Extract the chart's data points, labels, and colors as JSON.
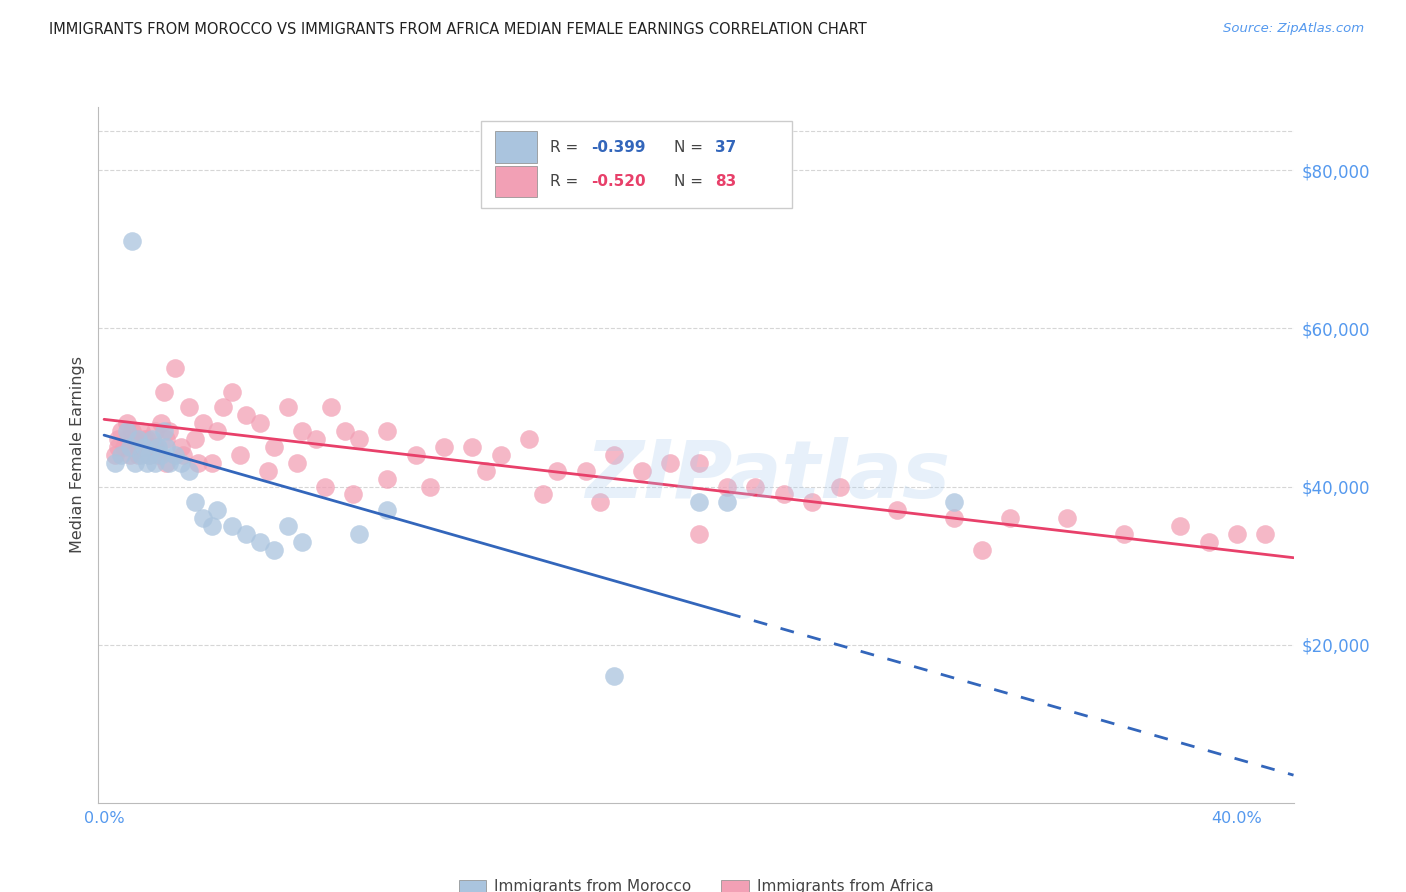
{
  "title": "IMMIGRANTS FROM MOROCCO VS IMMIGRANTS FROM AFRICA MEDIAN FEMALE EARNINGS CORRELATION CHART",
  "source": "Source: ZipAtlas.com",
  "ylabel": "Median Female Earnings",
  "xlabel_ticks": [
    "0.0%",
    "",
    "",
    "",
    "40.0%"
  ],
  "xlabel_vals": [
    0.0,
    0.1,
    0.2,
    0.3,
    0.4
  ],
  "ytick_labels": [
    "$20,000",
    "$40,000",
    "$60,000",
    "$80,000"
  ],
  "ytick_vals": [
    20000,
    40000,
    60000,
    80000
  ],
  "ylim": [
    0,
    88000
  ],
  "xlim": [
    -0.002,
    0.42
  ],
  "watermark": "ZIPatlas",
  "morocco_R": "-0.399",
  "morocco_N": "37",
  "africa_R": "-0.520",
  "africa_N": "83",
  "morocco_color": "#aac4de",
  "africa_color": "#f2a0b5",
  "morocco_line_color": "#3366bb",
  "africa_line_color": "#e8406a",
  "morocco_scatter_x": [
    0.004,
    0.006,
    0.008,
    0.009,
    0.01,
    0.011,
    0.012,
    0.013,
    0.014,
    0.015,
    0.016,
    0.017,
    0.018,
    0.019,
    0.02,
    0.021,
    0.022,
    0.023,
    0.025,
    0.027,
    0.03,
    0.032,
    0.035,
    0.038,
    0.04,
    0.045,
    0.05,
    0.055,
    0.06,
    0.065,
    0.07,
    0.09,
    0.1,
    0.18,
    0.21,
    0.22,
    0.3
  ],
  "morocco_scatter_y": [
    43000,
    44000,
    47000,
    45000,
    71000,
    43000,
    46000,
    44000,
    45000,
    43000,
    44000,
    46000,
    43000,
    45000,
    44000,
    47000,
    45000,
    43000,
    44000,
    43000,
    42000,
    38000,
    36000,
    35000,
    37000,
    35000,
    34000,
    33000,
    32000,
    35000,
    33000,
    34000,
    37000,
    16000,
    38000,
    38000,
    38000
  ],
  "africa_scatter_x": [
    0.004,
    0.005,
    0.006,
    0.007,
    0.008,
    0.009,
    0.01,
    0.011,
    0.012,
    0.013,
    0.014,
    0.015,
    0.016,
    0.017,
    0.018,
    0.019,
    0.02,
    0.021,
    0.022,
    0.023,
    0.025,
    0.027,
    0.03,
    0.032,
    0.035,
    0.04,
    0.042,
    0.045,
    0.05,
    0.055,
    0.06,
    0.065,
    0.07,
    0.075,
    0.08,
    0.085,
    0.09,
    0.1,
    0.11,
    0.12,
    0.13,
    0.14,
    0.15,
    0.16,
    0.17,
    0.18,
    0.19,
    0.2,
    0.21,
    0.22,
    0.23,
    0.24,
    0.25,
    0.26,
    0.28,
    0.3,
    0.32,
    0.34,
    0.36,
    0.38,
    0.39,
    0.4,
    0.41,
    0.005,
    0.008,
    0.012,
    0.018,
    0.022,
    0.028,
    0.033,
    0.038,
    0.048,
    0.058,
    0.068,
    0.078,
    0.088,
    0.1,
    0.115,
    0.135,
    0.155,
    0.175,
    0.21,
    0.31
  ],
  "africa_scatter_y": [
    44000,
    46000,
    47000,
    45000,
    46000,
    44000,
    47000,
    46000,
    45000,
    47000,
    46000,
    46000,
    44000,
    45000,
    47000,
    44000,
    48000,
    52000,
    46000,
    47000,
    55000,
    45000,
    50000,
    46000,
    48000,
    47000,
    50000,
    52000,
    49000,
    48000,
    45000,
    50000,
    47000,
    46000,
    50000,
    47000,
    46000,
    47000,
    44000,
    45000,
    45000,
    44000,
    46000,
    42000,
    42000,
    44000,
    42000,
    43000,
    43000,
    40000,
    40000,
    39000,
    38000,
    40000,
    37000,
    36000,
    36000,
    36000,
    34000,
    35000,
    33000,
    34000,
    34000,
    45000,
    48000,
    44000,
    45000,
    43000,
    44000,
    43000,
    43000,
    44000,
    42000,
    43000,
    40000,
    39000,
    41000,
    40000,
    42000,
    39000,
    38000,
    34000,
    32000
  ],
  "morocco_line_x0": 0.0,
  "morocco_line_y0": 46500,
  "morocco_line_x1": 0.22,
  "morocco_line_y1": 24000,
  "morocco_line_x2": 0.42,
  "morocco_line_y2": 3500,
  "africa_line_x0": 0.0,
  "africa_line_y0": 48500,
  "africa_line_x1": 0.42,
  "africa_line_y1": 31000,
  "background_color": "#ffffff",
  "grid_color": "#cccccc",
  "tick_label_color": "#5599ee",
  "title_color": "#222222",
  "ylabel_color": "#444444"
}
